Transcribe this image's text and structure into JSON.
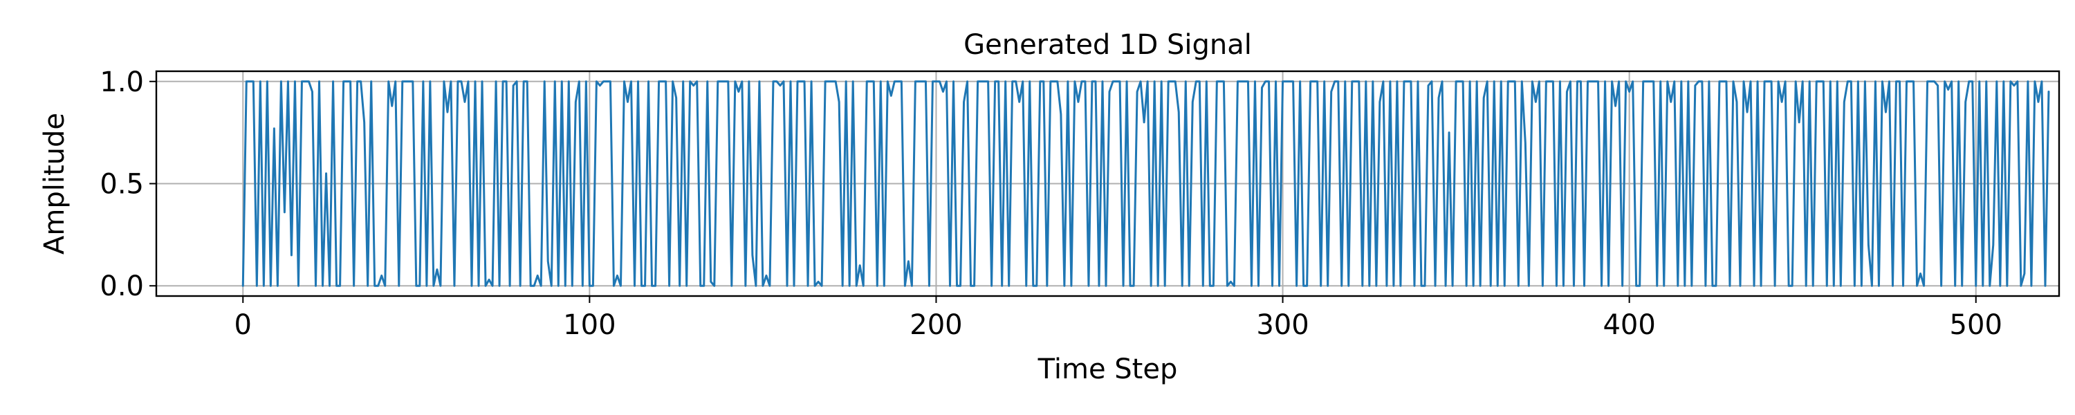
{
  "chart_data": {
    "type": "line",
    "title": "Generated 1D Signal",
    "xlabel": "Time Step",
    "ylabel": "Amplitude",
    "xlim": [
      -25,
      524
    ],
    "ylim": [
      -0.05,
      1.05
    ],
    "xticks": [
      0,
      100,
      200,
      300,
      400,
      500
    ],
    "xtick_labels": [
      "0",
      "100",
      "200",
      "300",
      "400",
      "500"
    ],
    "yticks": [
      0.0,
      0.5,
      1.0
    ],
    "ytick_labels": [
      "0.0",
      "0.5",
      "1.0"
    ],
    "grid": true,
    "colors": {
      "series": "#1f77b4",
      "grid": "#b0b0b0",
      "axes": "#000000"
    },
    "series": [
      {
        "x_start": 0,
        "x_step": 1,
        "values": [
          0,
          1,
          1,
          1,
          0,
          1,
          0,
          1,
          0,
          0.77,
          0,
          1,
          0.36,
          1,
          0.15,
          1,
          0,
          1,
          1,
          1,
          0.95,
          0,
          1,
          0,
          0.55,
          0,
          1,
          0,
          0,
          1,
          1,
          1,
          0,
          1,
          1,
          0.8,
          0,
          1,
          0,
          0,
          0.05,
          0,
          1,
          0.88,
          1,
          0,
          1,
          1,
          1,
          1,
          0,
          0,
          1,
          0,
          1,
          0,
          0.08,
          0,
          1,
          0.85,
          1,
          0,
          1,
          1,
          0.9,
          1,
          0,
          1,
          0,
          1,
          0,
          0.03,
          0,
          1,
          0,
          1,
          1,
          0,
          0.98,
          1,
          0,
          1,
          1,
          0,
          0,
          0.05,
          0,
          1,
          0.12,
          0,
          1,
          0,
          1,
          0,
          1,
          0,
          0.9,
          1,
          0,
          1,
          0,
          0,
          1,
          0.98,
          1,
          1,
          1,
          0,
          0.05,
          0,
          1,
          0.9,
          1,
          0,
          1,
          0,
          0,
          1,
          0,
          0,
          1,
          1,
          1,
          0,
          1,
          0.92,
          0,
          1,
          0,
          1,
          0.98,
          1,
          0,
          0,
          1,
          0.02,
          0,
          1,
          1,
          1,
          1,
          0,
          1,
          0.95,
          1,
          0,
          1,
          0.15,
          0,
          1,
          0,
          0.05,
          0,
          1,
          1,
          0.98,
          1,
          0,
          1,
          0,
          1,
          1,
          1,
          0,
          1,
          0,
          0.02,
          0,
          1,
          1,
          1,
          1,
          0.9,
          0,
          1,
          0,
          1,
          0,
          0.1,
          0,
          1,
          1,
          1,
          0,
          1,
          0,
          1,
          0.93,
          1,
          1,
          1,
          0,
          0.12,
          0,
          1,
          1,
          1,
          1,
          0,
          1,
          1,
          1,
          0.95,
          1,
          0,
          1,
          0,
          0,
          0.9,
          1,
          0,
          0,
          1,
          1,
          1,
          1,
          0,
          1,
          1,
          0,
          1,
          0,
          1,
          1,
          0.9,
          1,
          0,
          1,
          0,
          0,
          1,
          1,
          0,
          1,
          1,
          1,
          0.84,
          0,
          1,
          0,
          1,
          0.9,
          1,
          1,
          0,
          1,
          1,
          0,
          1,
          0,
          0.95,
          1,
          1,
          1,
          0,
          1,
          0,
          0,
          0.95,
          1,
          0.8,
          1,
          0,
          1,
          0,
          1,
          0,
          1,
          1,
          1,
          0.85,
          0,
          1,
          0,
          0.9,
          1,
          1,
          0,
          1,
          0,
          0,
          1,
          1,
          1,
          0,
          0.02,
          0,
          1,
          1,
          1,
          1,
          0,
          1,
          0,
          0.97,
          1,
          1,
          0,
          1,
          0,
          1,
          1,
          1,
          1,
          0,
          1,
          0,
          0,
          1,
          1,
          1,
          0,
          1,
          0,
          0.95,
          1,
          1,
          0,
          1,
          0,
          1,
          1,
          1,
          0,
          1,
          0,
          1,
          0,
          0.9,
          1,
          0,
          1,
          0,
          1,
          0,
          1,
          1,
          1,
          0,
          1,
          0,
          0,
          0.98,
          1,
          0,
          0.92,
          1,
          0,
          0.75,
          0,
          1,
          1,
          1,
          0,
          1,
          0,
          1,
          0,
          0.92,
          1,
          0,
          1,
          0,
          1,
          0,
          1,
          1,
          1,
          0,
          1,
          0.7,
          0,
          1,
          0.9,
          1,
          0,
          1,
          1,
          1,
          0,
          1,
          0,
          0.95,
          1,
          0,
          1,
          1,
          0,
          1,
          1,
          1,
          1,
          0,
          1,
          0,
          1,
          0.88,
          1,
          0,
          1,
          0.95,
          1,
          0,
          0,
          1,
          1,
          1,
          1,
          0,
          1,
          0,
          1,
          0.9,
          1,
          0,
          1,
          0,
          1,
          0,
          0.98,
          1,
          1,
          0,
          1,
          0,
          0,
          1,
          1,
          1,
          0,
          1,
          0.9,
          0,
          1,
          0.85,
          1,
          0,
          1,
          0,
          1,
          1,
          1,
          0,
          1,
          0.9,
          1,
          0,
          0,
          1,
          0.8,
          1,
          0,
          1,
          0,
          1,
          1,
          1,
          0,
          1,
          0,
          1,
          0,
          0.9,
          1,
          1,
          0,
          1,
          0,
          1,
          0.2,
          0,
          1,
          0,
          1,
          0.85,
          1,
          0,
          1,
          1,
          0,
          1,
          1,
          1,
          0,
          0.06,
          0,
          1,
          1,
          1,
          0.98,
          0,
          1,
          0.96,
          1,
          0,
          1,
          0,
          0.9,
          1,
          1,
          0,
          1,
          0,
          1,
          0,
          0.2,
          1,
          0,
          1,
          0,
          1,
          0.98,
          1,
          0,
          0.06,
          1,
          0,
          1,
          0.9,
          1,
          0,
          0.95
        ]
      }
    ]
  }
}
